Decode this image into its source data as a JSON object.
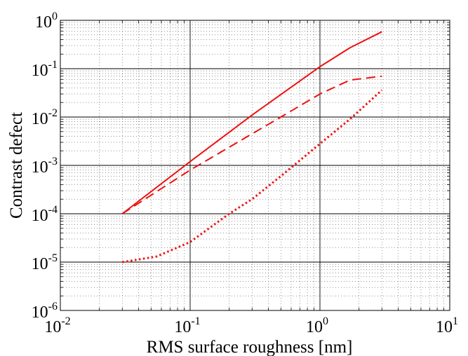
{
  "chart_data": {
    "type": "line",
    "title": "",
    "xlabel": "RMS surface roughness [nm]",
    "ylabel": "Contrast defect",
    "xscale": "log",
    "yscale": "log",
    "xlim": [
      0.01,
      10
    ],
    "ylim": [
      1e-06,
      1
    ],
    "grid": "major solid, minor dotted",
    "x_ticks": [
      {
        "base": "10",
        "exp": "-2",
        "value": 0.01
      },
      {
        "base": "10",
        "exp": "-1",
        "value": 0.1
      },
      {
        "base": "10",
        "exp": "0",
        "value": 1
      },
      {
        "base": "10",
        "exp": "1",
        "value": 10
      }
    ],
    "y_ticks": [
      {
        "base": "10",
        "exp": "-6",
        "value": 1e-06
      },
      {
        "base": "10",
        "exp": "-5",
        "value": 1e-05
      },
      {
        "base": "10",
        "exp": "-4",
        "value": 0.0001
      },
      {
        "base": "10",
        "exp": "-3",
        "value": 0.001
      },
      {
        "base": "10",
        "exp": "-2",
        "value": 0.01
      },
      {
        "base": "10",
        "exp": "-1",
        "value": 0.1
      },
      {
        "base": "10",
        "exp": "0",
        "value": 1
      }
    ],
    "series": [
      {
        "line_style": "solid",
        "color": "#ee1111",
        "x": [
          0.03,
          0.1,
          0.3,
          1,
          1.7,
          3
        ],
        "y": [
          0.0001,
          0.0012,
          0.011,
          0.11,
          0.27,
          0.58
        ]
      },
      {
        "line_style": "dashed",
        "color": "#ee1111",
        "x": [
          0.03,
          0.1,
          0.3,
          0.5,
          1,
          1.7,
          3
        ],
        "y": [
          0.0001,
          0.0008,
          0.0045,
          0.01,
          0.03,
          0.058,
          0.07
        ]
      },
      {
        "line_style": "dotted",
        "color": "#ee1111",
        "x": [
          0.03,
          0.055,
          0.1,
          0.2,
          0.3,
          0.5,
          1,
          1.7,
          3
        ],
        "y": [
          1e-05,
          1.3e-05,
          2.6e-05,
          0.0001,
          0.0002,
          0.0006,
          0.0028,
          0.009,
          0.036
        ]
      }
    ]
  }
}
